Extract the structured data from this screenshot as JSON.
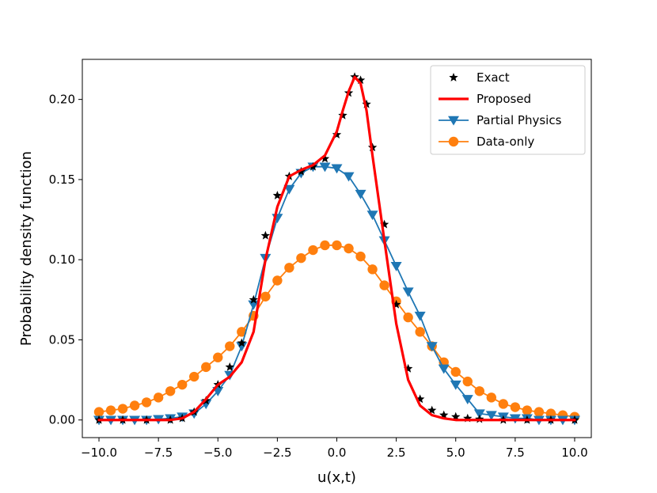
{
  "chart_data": {
    "type": "line",
    "title": "",
    "xlabel": "u(x,t)",
    "ylabel": "Probability density function",
    "xlim": [
      -10.7,
      10.7
    ],
    "ylim": [
      -0.011,
      0.225
    ],
    "xticks": [
      "−10.0",
      "−7.5",
      "−5.0",
      "−2.5",
      "0.0",
      "2.5",
      "5.0",
      "7.5",
      "10.0"
    ],
    "xtick_values": [
      -10,
      -7.5,
      -5,
      -2.5,
      0,
      2.5,
      5,
      7.5,
      10
    ],
    "yticks": [
      "0.00",
      "0.05",
      "0.10",
      "0.15",
      "0.20"
    ],
    "ytick_values": [
      0,
      0.05,
      0.1,
      0.15,
      0.2
    ],
    "grid": false,
    "legend_position": "top-right",
    "series": [
      {
        "name": "Exact",
        "color": "#000000",
        "marker": "star",
        "line": false,
        "x": [
          -10,
          -9,
          -8,
          -7,
          -6.5,
          -6,
          -5.5,
          -5,
          -4.5,
          -4,
          -3.5,
          -3,
          -2.5,
          -2,
          -1.5,
          -1,
          -0.5,
          0,
          0.25,
          0.5,
          0.75,
          1,
          1.25,
          1.5,
          2,
          2.5,
          3,
          3.5,
          4,
          4.5,
          5,
          5.5,
          6,
          7,
          8,
          9,
          10
        ],
        "y": [
          0,
          0,
          0,
          0,
          0.001,
          0.005,
          0.012,
          0.022,
          0.033,
          0.048,
          0.075,
          0.115,
          0.14,
          0.152,
          0.155,
          0.158,
          0.163,
          0.178,
          0.19,
          0.204,
          0.214,
          0.212,
          0.197,
          0.17,
          0.122,
          0.072,
          0.032,
          0.013,
          0.006,
          0.003,
          0.002,
          0.001,
          0.0005,
          0,
          0,
          0,
          0
        ]
      },
      {
        "name": "Proposed",
        "color": "#ff0000",
        "marker": "none",
        "line": true,
        "x": [
          -10,
          -7,
          -6.5,
          -6,
          -5.5,
          -5,
          -4.5,
          -4,
          -3.5,
          -3,
          -2.5,
          -2,
          -1.5,
          -1,
          -0.5,
          0,
          0.25,
          0.5,
          0.75,
          1,
          1.25,
          1.5,
          2,
          2.5,
          3,
          3.5,
          4,
          4.5,
          5,
          6,
          7,
          10
        ],
        "y": [
          0,
          0,
          0.001,
          0.005,
          0.013,
          0.022,
          0.027,
          0.036,
          0.055,
          0.1,
          0.133,
          0.152,
          0.156,
          0.159,
          0.165,
          0.18,
          0.193,
          0.205,
          0.214,
          0.21,
          0.193,
          0.165,
          0.112,
          0.06,
          0.025,
          0.009,
          0.003,
          0.001,
          0,
          0,
          0,
          0
        ]
      },
      {
        "name": "Partial Physics",
        "color": "#1f77b4",
        "marker": "triangle-down",
        "line": true,
        "x": [
          -10,
          -9.5,
          -9,
          -8.5,
          -8,
          -7.5,
          -7,
          -6.5,
          -6,
          -5.5,
          -5,
          -4.5,
          -4,
          -3.5,
          -3,
          -2.5,
          -2,
          -1.5,
          -1,
          -0.5,
          0,
          0.5,
          1,
          1.5,
          2,
          2.5,
          3,
          3.5,
          4,
          4.5,
          5,
          5.5,
          6,
          6.5,
          7,
          7.5,
          8,
          8.5,
          9,
          9.5,
          10
        ],
        "y": [
          0,
          0,
          0,
          0,
          0,
          0.0005,
          0.001,
          0.002,
          0.004,
          0.01,
          0.018,
          0.028,
          0.046,
          0.072,
          0.101,
          0.126,
          0.144,
          0.154,
          0.158,
          0.158,
          0.157,
          0.152,
          0.141,
          0.128,
          0.112,
          0.096,
          0.08,
          0.065,
          0.046,
          0.032,
          0.022,
          0.013,
          0.004,
          0.003,
          0.002,
          0.001,
          0.001,
          0,
          0,
          0,
          0
        ]
      },
      {
        "name": "Data-only",
        "color": "#ff7f0e",
        "marker": "circle",
        "line": true,
        "x": [
          -10,
          -9.5,
          -9,
          -8.5,
          -8,
          -7.5,
          -7,
          -6.5,
          -6,
          -5.5,
          -5,
          -4.5,
          -4,
          -3.5,
          -3,
          -2.5,
          -2,
          -1.5,
          -1,
          -0.5,
          0,
          0.5,
          1,
          1.5,
          2,
          2.5,
          3,
          3.5,
          4,
          4.5,
          5,
          5.5,
          6,
          6.5,
          7,
          7.5,
          8,
          8.5,
          9,
          9.5,
          10
        ],
        "y": [
          0.005,
          0.006,
          0.007,
          0.009,
          0.011,
          0.014,
          0.018,
          0.022,
          0.027,
          0.033,
          0.039,
          0.046,
          0.055,
          0.065,
          0.077,
          0.087,
          0.095,
          0.101,
          0.106,
          0.109,
          0.109,
          0.107,
          0.102,
          0.094,
          0.084,
          0.074,
          0.064,
          0.055,
          0.046,
          0.036,
          0.03,
          0.024,
          0.018,
          0.014,
          0.01,
          0.008,
          0.006,
          0.005,
          0.004,
          0.003,
          0.002
        ]
      }
    ]
  }
}
